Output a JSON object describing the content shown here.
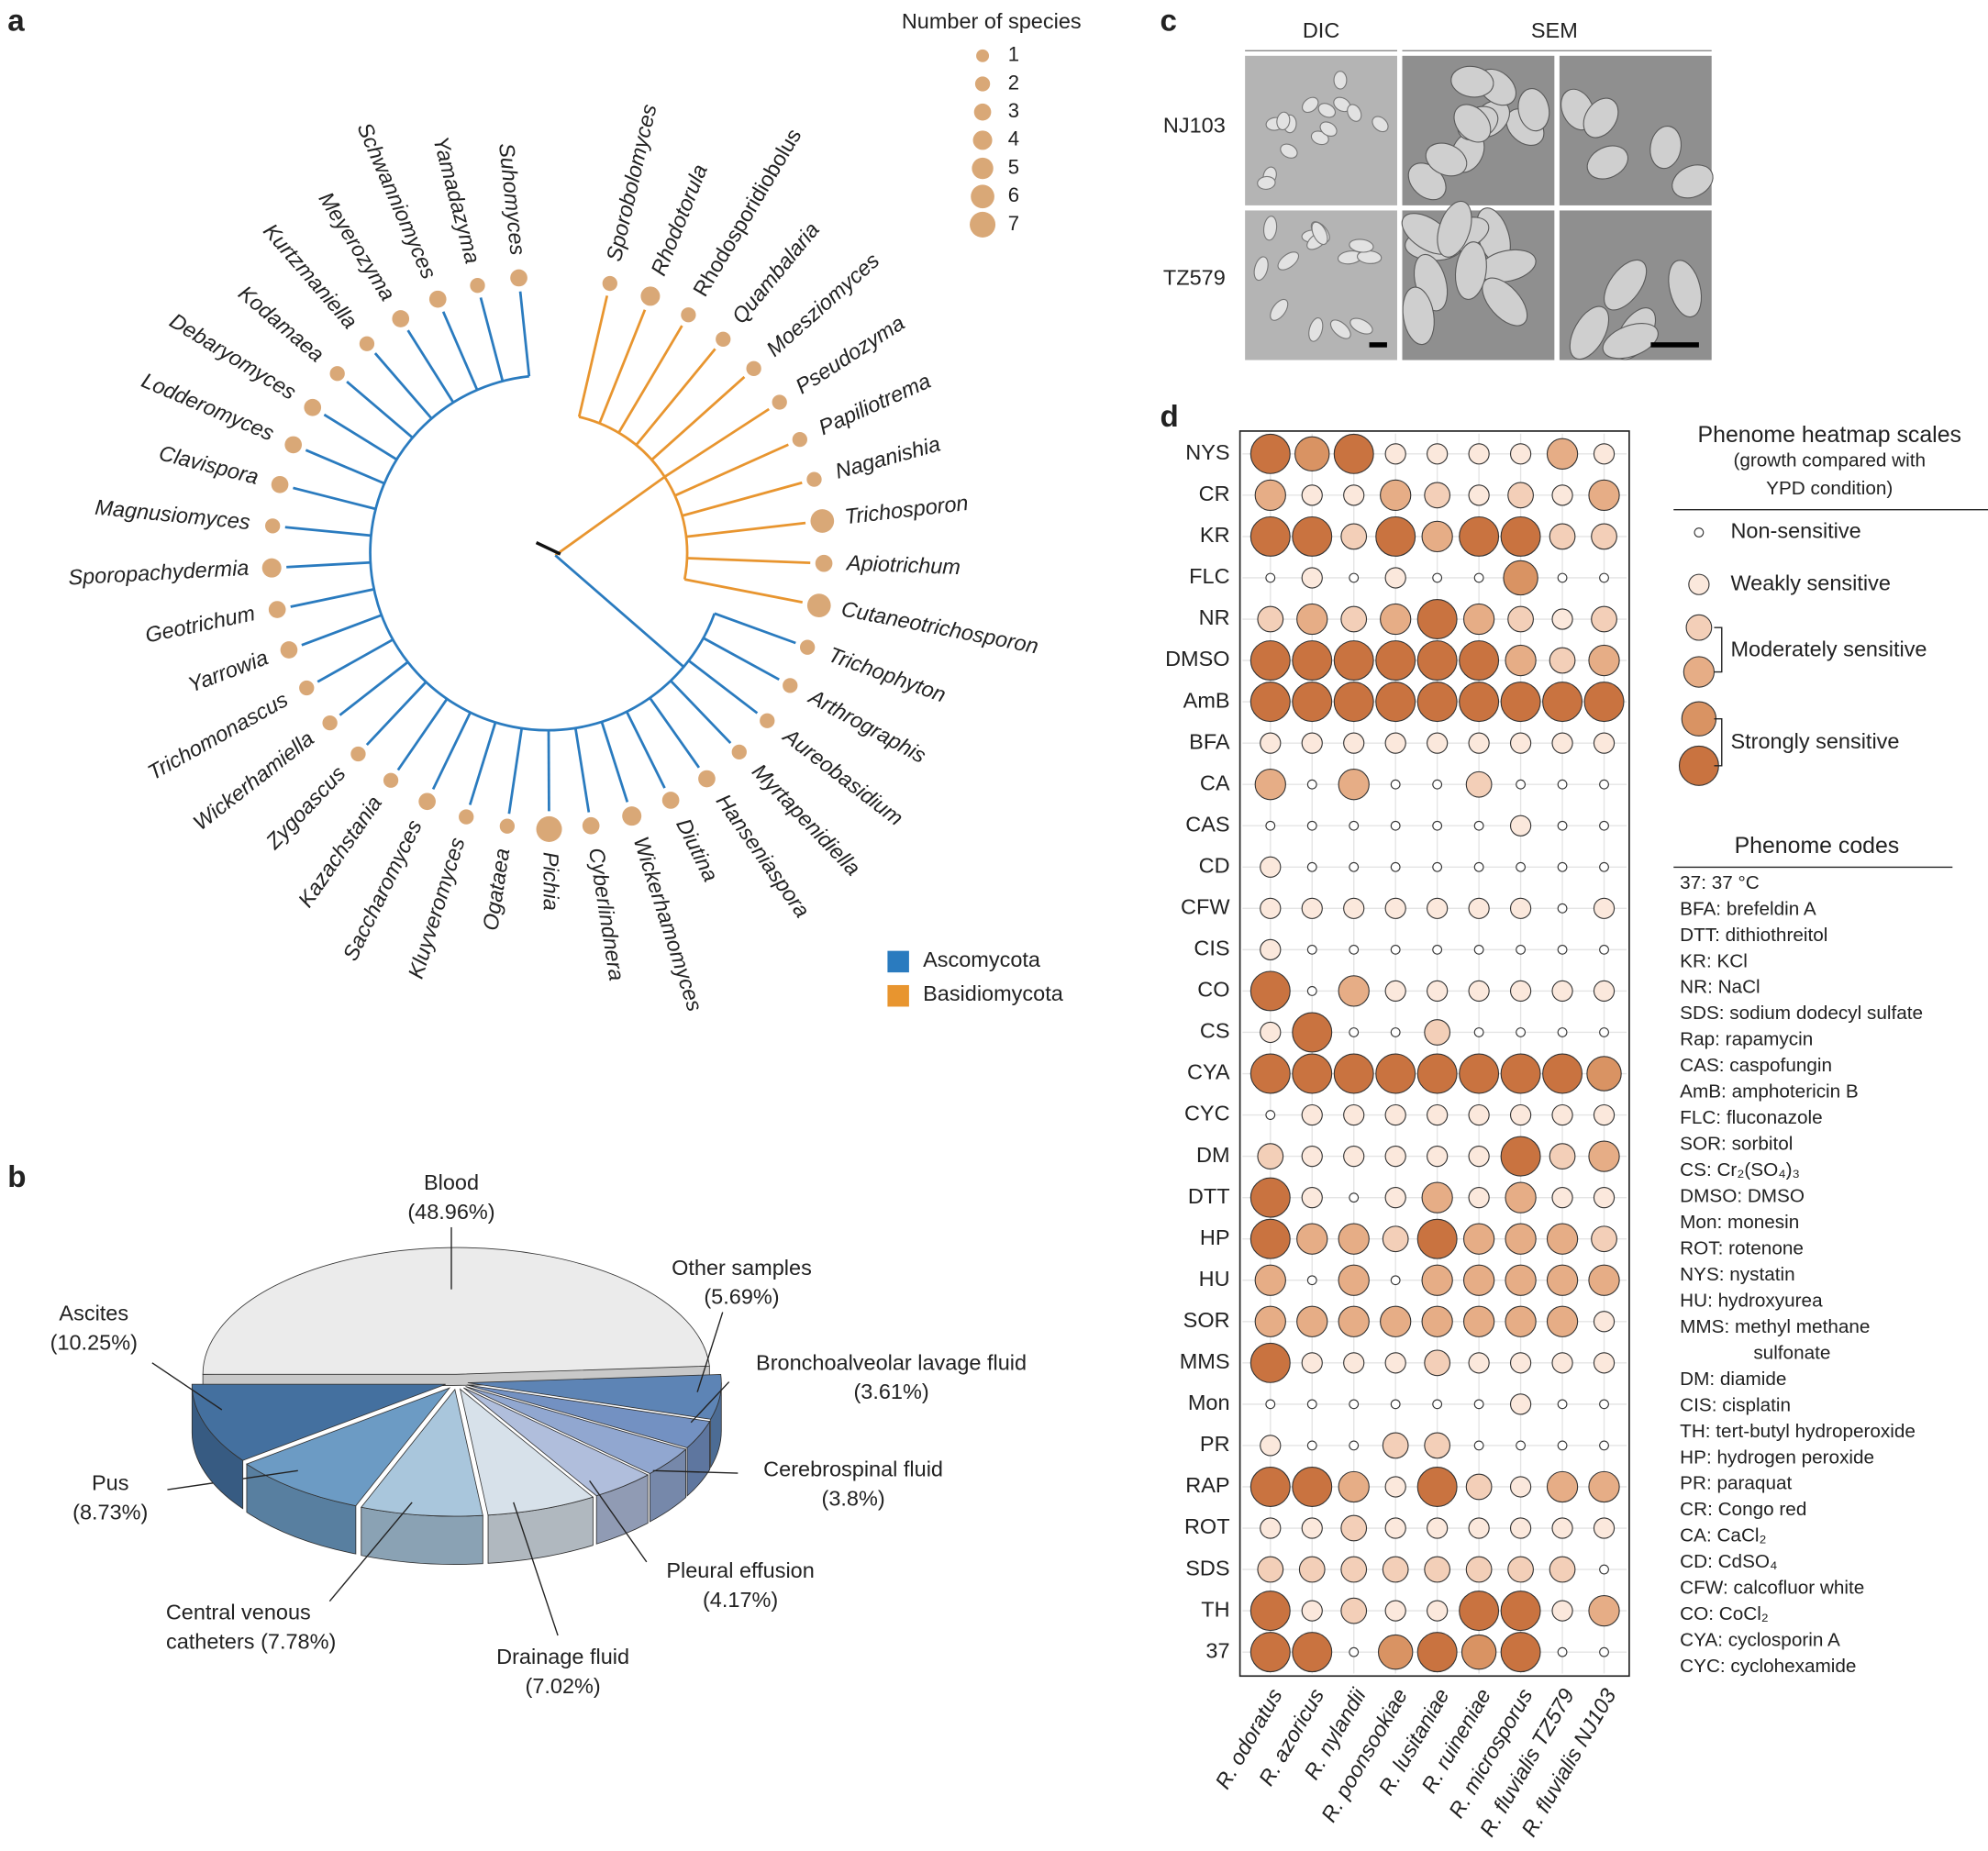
{
  "panel_labels": [
    "a",
    "b",
    "c",
    "d"
  ],
  "panel_a": {
    "legend_title": "Number of species",
    "legend_values": [
      1,
      2,
      3,
      4,
      5,
      6,
      7
    ],
    "dot_color": "#d9a877",
    "clades": [
      {
        "name": "Basidiomycota",
        "color": "#e8952f",
        "tips": [
          {
            "genus": "Sporobolomyces",
            "species": 2
          },
          {
            "genus": "Rhodotorula",
            "species": 4
          },
          {
            "genus": "Rhodosporidiobolus",
            "species": 2,
            "highlight": "#c8102e"
          },
          {
            "genus": "Quambalaria",
            "species": 2
          },
          {
            "genus": "Moesziomyces",
            "species": 2
          },
          {
            "genus": "Pseudozyma",
            "species": 2
          },
          {
            "genus": "Papiliotrema",
            "species": 2
          },
          {
            "genus": "Naganishia",
            "species": 2
          },
          {
            "genus": "Trichosporon",
            "species": 6
          },
          {
            "genus": "Apiotrichum",
            "species": 3
          },
          {
            "genus": "Cutaneotrichosporon",
            "species": 6
          }
        ]
      },
      {
        "name": "Ascomycota",
        "color": "#2a7bbf",
        "tips": [
          {
            "genus": "Trichophyton",
            "species": 2
          },
          {
            "genus": "Arthrographis",
            "species": 2
          },
          {
            "genus": "Aureobasidium",
            "species": 2
          },
          {
            "genus": "Myrtapenidiella",
            "species": 2
          },
          {
            "genus": "Hanseniaspora",
            "species": 3
          },
          {
            "genus": "Diutina",
            "species": 3
          },
          {
            "genus": "Wickerhamomyces",
            "species": 4
          },
          {
            "genus": "Cyberlindnera",
            "species": 3
          },
          {
            "genus": "Pichia",
            "species": 7
          },
          {
            "genus": "Ogataea",
            "species": 2
          },
          {
            "genus": "Kluyveromyces",
            "species": 2
          },
          {
            "genus": "Saccharomyces",
            "species": 3
          },
          {
            "genus": "Kazachstania",
            "species": 2
          },
          {
            "genus": "Zygoascus",
            "species": 2
          },
          {
            "genus": "Wickerhamiella",
            "species": 2
          },
          {
            "genus": "Trichomonascus",
            "species": 2
          },
          {
            "genus": "Yarrowia",
            "species": 3
          },
          {
            "genus": "Geotrichum",
            "species": 3
          },
          {
            "genus": "Sporopachydermia",
            "species": 4
          },
          {
            "genus": "Magnusiomyces",
            "species": 2
          },
          {
            "genus": "Clavispora",
            "species": 3
          },
          {
            "genus": "Lodderomyces",
            "species": 3
          },
          {
            "genus": "Debaryomyces",
            "species": 3
          },
          {
            "genus": "Kodamaea",
            "species": 2
          },
          {
            "genus": "Kurtzmaniella",
            "species": 2
          },
          {
            "genus": "Meyerozyma",
            "species": 3
          },
          {
            "genus": "Schwanniomyces",
            "species": 3
          },
          {
            "genus": "Yamadazyma",
            "species": 2
          },
          {
            "genus": "Suhomyces",
            "species": 3
          }
        ]
      }
    ]
  },
  "panel_b": {
    "slices": [
      {
        "label_lines": [
          "Blood",
          "(48.96%)"
        ],
        "value": 48.96,
        "color": "#ebebeb"
      },
      {
        "label_lines": [
          "Other samples",
          "(5.69%)"
        ],
        "value": 5.69,
        "color": "#5d84b5"
      },
      {
        "label_lines": [
          "Bronchoalveolar lavage fluid",
          "(3.61%)"
        ],
        "value": 3.61,
        "color": "#7391c2"
      },
      {
        "label_lines": [
          "Cerebrospinal fluid",
          "(3.8%)"
        ],
        "value": 3.8,
        "color": "#91a7d0"
      },
      {
        "label_lines": [
          "Pleural effusion",
          "(4.17%)"
        ],
        "value": 4.17,
        "color": "#b0bedc"
      },
      {
        "label_lines": [
          "Drainage fluid",
          "(7.02%)"
        ],
        "value": 7.02,
        "color": "#d7e1ea"
      },
      {
        "label_lines": [
          "Central venous",
          "catheters (7.78%)"
        ],
        "value": 7.78,
        "color": "#a9c6dc"
      },
      {
        "label_lines": [
          "Pus",
          "(8.73%)"
        ],
        "value": 8.73,
        "color": "#6c9bc4"
      },
      {
        "label_lines": [
          "Ascites",
          "(10.25%)"
        ],
        "value": 10.25,
        "color": "#44709f"
      }
    ]
  },
  "panel_c": {
    "columns": [
      "DIC",
      "SEM"
    ],
    "rows": [
      "NJ103",
      "TZ579"
    ]
  },
  "panel_d": {
    "rows": [
      "NYS",
      "CR",
      "KR",
      "FLC",
      "NR",
      "DMSO",
      "AmB",
      "BFA",
      "CA",
      "CAS",
      "CD",
      "CFW",
      "CIS",
      "CO",
      "CS",
      "CYA",
      "CYC",
      "DM",
      "DTT",
      "HP",
      "HU",
      "SOR",
      "MMS",
      "Mon",
      "PR",
      "RAP",
      "ROT",
      "SDS",
      "TH",
      "37"
    ],
    "columns": [
      "R. odoratus",
      "R. azoricus",
      "R. nylandii",
      "R. poonsookiae",
      "R. lusitaniae",
      "R. ruineniae",
      "R. microsporus",
      "R. fluvialis TZ579",
      "R. fluvialis NJ103"
    ],
    "level_colors": [
      "#ffffff",
      "#fbe8dc",
      "#f3cfb8",
      "#e6ad86",
      "#d99363",
      "#c97340"
    ],
    "levels": [
      [
        5,
        4,
        5,
        1,
        1,
        1,
        1,
        3,
        1
      ],
      [
        3,
        1,
        1,
        3,
        2,
        1,
        2,
        1,
        3
      ],
      [
        5,
        5,
        2,
        5,
        3,
        5,
        5,
        2,
        2
      ],
      [
        0,
        1,
        0,
        1,
        0,
        0,
        4,
        0,
        0
      ],
      [
        2,
        3,
        2,
        3,
        5,
        3,
        2,
        1,
        2
      ],
      [
        5,
        5,
        5,
        5,
        5,
        5,
        3,
        2,
        3
      ],
      [
        5,
        5,
        5,
        5,
        5,
        5,
        5,
        5,
        5
      ],
      [
        1,
        1,
        1,
        1,
        1,
        1,
        1,
        1,
        1
      ],
      [
        3,
        0,
        3,
        0,
        0,
        2,
        0,
        0,
        0
      ],
      [
        0,
        0,
        0,
        0,
        0,
        0,
        1,
        0,
        0
      ],
      [
        1,
        0,
        0,
        0,
        0,
        0,
        0,
        0,
        0
      ],
      [
        1,
        1,
        1,
        1,
        1,
        1,
        1,
        0,
        1
      ],
      [
        1,
        0,
        0,
        0,
        0,
        0,
        0,
        0,
        0
      ],
      [
        5,
        0,
        3,
        1,
        1,
        1,
        1,
        1,
        1
      ],
      [
        1,
        5,
        0,
        0,
        2,
        0,
        0,
        0,
        0
      ],
      [
        5,
        5,
        5,
        5,
        5,
        5,
        5,
        5,
        4
      ],
      [
        0,
        1,
        1,
        1,
        1,
        1,
        1,
        1,
        1
      ],
      [
        2,
        1,
        1,
        1,
        1,
        1,
        5,
        2,
        3
      ],
      [
        5,
        1,
        0,
        1,
        3,
        1,
        3,
        1,
        1
      ],
      [
        5,
        3,
        3,
        2,
        5,
        3,
        3,
        3,
        2
      ],
      [
        3,
        0,
        3,
        0,
        3,
        3,
        3,
        3,
        3
      ],
      [
        3,
        3,
        3,
        3,
        3,
        3,
        3,
        3,
        1
      ],
      [
        5,
        1,
        1,
        1,
        2,
        1,
        1,
        1,
        1
      ],
      [
        0,
        0,
        0,
        0,
        0,
        0,
        1,
        0,
        0
      ],
      [
        1,
        0,
        0,
        2,
        2,
        0,
        0,
        0,
        0
      ],
      [
        5,
        5,
        3,
        1,
        5,
        2,
        1,
        3,
        3
      ],
      [
        1,
        1,
        2,
        1,
        1,
        1,
        1,
        1,
        1
      ],
      [
        2,
        2,
        2,
        2,
        2,
        2,
        2,
        2,
        0
      ],
      [
        5,
        1,
        2,
        1,
        1,
        5,
        5,
        1,
        3
      ],
      [
        5,
        5,
        0,
        4,
        5,
        4,
        5,
        0,
        0
      ]
    ],
    "scale_title_lines": [
      "Phenome heatmap scales",
      "(growth compared with",
      "YPD condition)"
    ],
    "scale_labels": [
      "Non-sensitive",
      "Weakly sensitive",
      "Moderately sensitive",
      "Strongly sensitive"
    ],
    "codes_title": "Phenome codes",
    "codes": [
      "37: 37 °C",
      "BFA: brefeldin A",
      "DTT: dithiothreitol",
      "KR: KCl",
      "NR: NaCl",
      "SDS: sodium dodecyl sulfate",
      "Rap: rapamycin",
      "CAS: caspofungin",
      "AmB: amphotericin B",
      "FLC: fluconazole",
      "SOR: sorbitol",
      "CS: Cr₂(SO₄)₃",
      "DMSO: DMSO",
      "Mon: monesin",
      "ROT: rotenone",
      "NYS: nystatin",
      "HU: hydroxyurea",
      "MMS: methyl methane",
      "sulfonate",
      "DM: diamide",
      "CIS: cisplatin",
      "TH: tert-butyl hydroperoxide",
      "HP: hydrogen peroxide",
      "PR: paraquat",
      "CR: Congo red",
      "CA: CaCl₂",
      "CD: CdSO₄",
      "CFW: calcofluor white",
      "CO: CoCl₂",
      "CYA: cyclosporin A",
      "CYC: cyclohexamide"
    ]
  }
}
